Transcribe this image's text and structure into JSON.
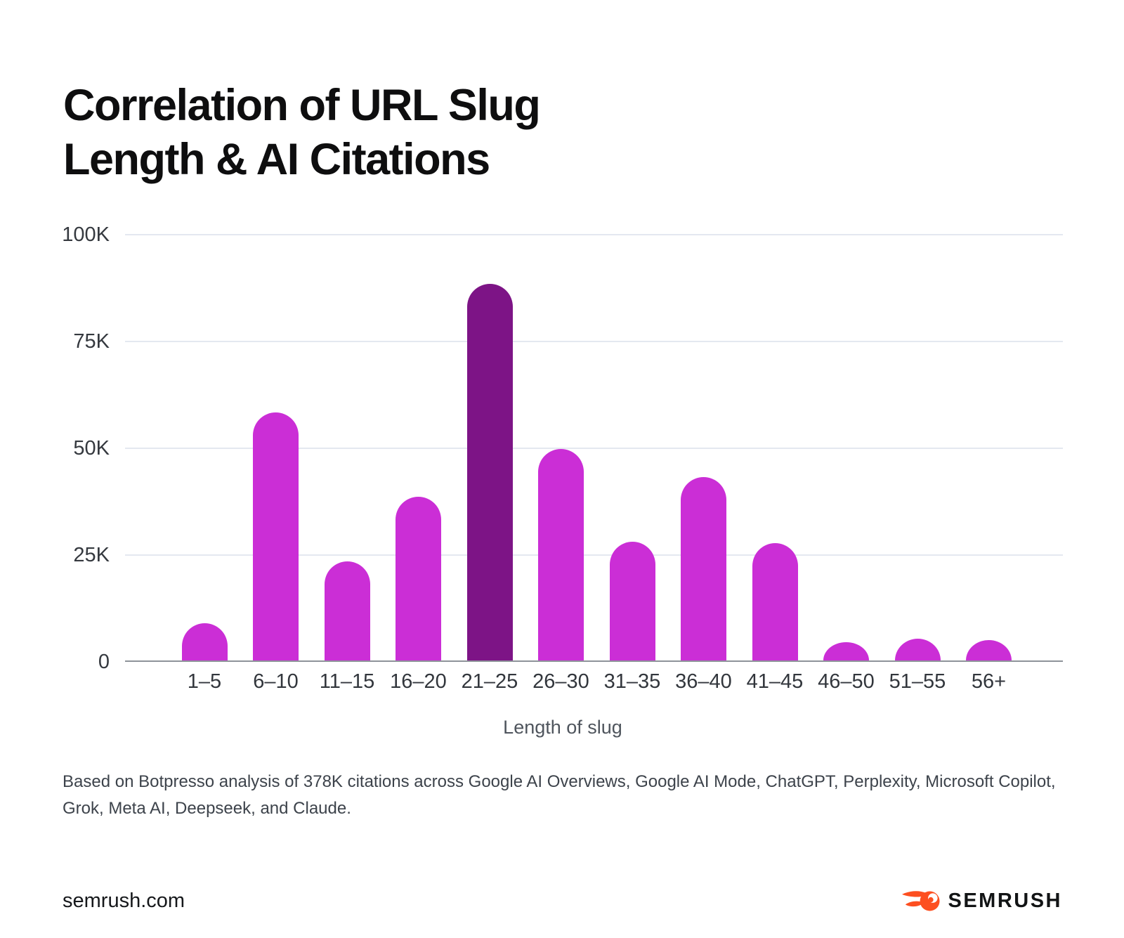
{
  "title": {
    "lines": [
      "Correlation of URL Slug",
      "Length & AI Citations"
    ]
  },
  "chart_data": {
    "type": "bar",
    "title": "Correlation of URL Slug Length & AI Citations",
    "categories": [
      "1–5",
      "6–10",
      "11–15",
      "16–20",
      "21–25",
      "26–30",
      "31–35",
      "36–40",
      "41–45",
      "46–50",
      "51–55",
      "56+"
    ],
    "values": [
      8700,
      58000,
      23200,
      38300,
      88200,
      49500,
      27800,
      43000,
      27500,
      4300,
      5100,
      4800
    ],
    "highlight_index": 4,
    "xlabel": "Length of slug",
    "ylabel": "",
    "ylim": [
      0,
      100000
    ],
    "yticks": [
      {
        "label": "100K",
        "value": 100000
      },
      {
        "label": "75K",
        "value": 75000
      },
      {
        "label": "50K",
        "value": 50000
      },
      {
        "label": "25K",
        "value": 25000
      },
      {
        "label": "0",
        "value": 0
      }
    ],
    "grid": "horizontal",
    "legend_position": "none",
    "colors": {
      "bar": "#cb2ed6",
      "highlight": "#7d1486",
      "gridline": "#e4e8f0",
      "axis_line": "#8e9399"
    }
  },
  "footnote": {
    "lines": [
      "Based on Botpresso analysis of 378K citations across Google AI Overviews, Google AI Mode, ChatGPT, Perplexity, Microsoft Copilot,",
      "Grok, Meta AI, Deepseek, and Claude."
    ]
  },
  "footer": {
    "site_url": "semrush.com",
    "brand_name": "SEMRUSH",
    "logo_color": "#fd4f20"
  }
}
